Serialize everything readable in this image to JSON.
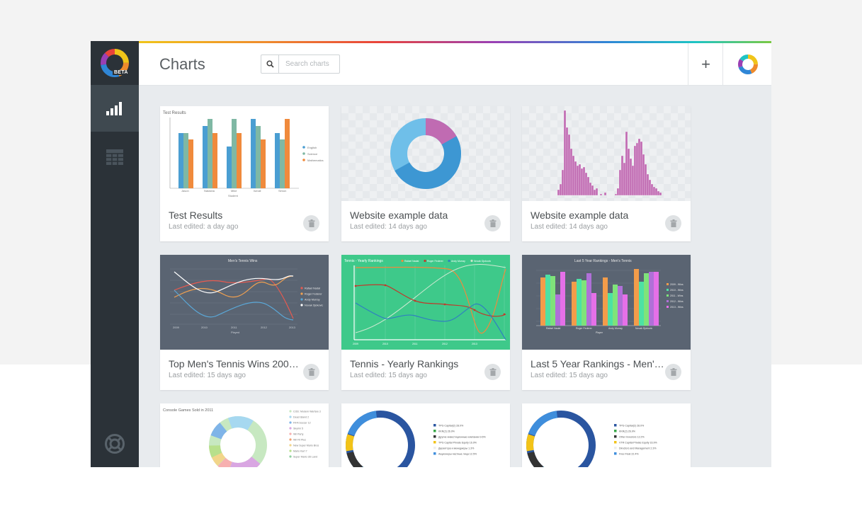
{
  "app": {
    "title": "Charts",
    "badge": "BETA",
    "search_placeholder": "Search charts",
    "add_label": "+"
  },
  "colors": {
    "sidebar": "#2b3238",
    "sidebar_active": "#3f4950",
    "content_bg": "#e8ebee",
    "tennis_green": "#3ec98a",
    "dark_slate": "#5a6472"
  },
  "sidebar": {
    "items": [
      {
        "icon": "bar-chart-icon",
        "active": true
      },
      {
        "icon": "table-icon",
        "active": false
      },
      {
        "icon": "help-ring-icon",
        "active": false
      }
    ]
  },
  "cards": [
    {
      "title": "Test Results",
      "subtitle": "Last edited: a day ago",
      "thumb": {
        "title": "Test Results",
        "xlabel": "Student",
        "ylabel": "Score",
        "categories": [
          "Jason",
          "Natasha",
          "Mike",
          "Ismail",
          "Simon"
        ],
        "legend": [
          "English",
          "Science",
          "Mathematics"
        ]
      }
    },
    {
      "title": "Website example data",
      "subtitle": "Last edited: 14 days ago"
    },
    {
      "title": "Website example data",
      "subtitle": "Last edited: 14 days ago"
    },
    {
      "title": "Top Men's Tennis Wins 2009 - 2013",
      "subtitle": "Last edited: 15 days ago",
      "thumb": {
        "title": "Men's Tennis Wins",
        "xlabel": "Played",
        "legend": [
          "Rafael Nadal",
          "Roger Federer",
          "Andy Murray",
          "Novak Djokovic"
        ],
        "x_ticks": [
          "2009",
          "2010",
          "2011",
          "2012",
          "2013"
        ]
      }
    },
    {
      "title": "Tennis - Yearly Rankings",
      "subtitle": "Last edited: 15 days ago",
      "thumb": {
        "title": "Tennis - Yearly Rankings",
        "legend": [
          "Rafael Nadal",
          "Roger Federer",
          "Andy Murray",
          "Novak Djokovic"
        ],
        "x_ticks": [
          "2009",
          "2010",
          "2011",
          "2012",
          "2013"
        ]
      }
    },
    {
      "title": "Last 5 Year Rankings - Men's Tennis",
      "subtitle": "Last edited: 15 days ago",
      "thumb": {
        "title": "Last 5 Year Rankings - Men's Tennis",
        "xlabel": "Player",
        "categories": [
          "Rafael Nadal",
          "Roger Federer",
          "Andy Murray",
          "Novak Djokovic"
        ],
        "legend": [
          "2009 - Wins",
          "2010 - Wins",
          "2011 - Wins",
          "2012 - Wins",
          "2013 - Wins"
        ]
      }
    },
    {
      "title": "Console Games Sold in 2011",
      "subtitle": "",
      "thumb": {
        "title": "Console Games Sold in 2011",
        "legend": [
          "COD: Modern Warfare 3",
          "Dead Island 2",
          "FIFA Soccer 12",
          "Skyrim 5",
          "Wii Party",
          "Wii Fit Plus",
          "New Super Mario Bros",
          "Mario Kart 7",
          "Super Mario 3D Land"
        ]
      }
    },
    {
      "title": "",
      "subtitle": "",
      "thumb": {
        "legend": [
          "TPG Capital(2) 28.0%",
          "KKR(2) 26.9%",
          "Другие инвестиционные компании 9.6%",
          "TPG Capital Private Equity 16.9%",
          "Директора и менеджеры 1.3%",
          "Акционеры-частные лица 12.5%"
        ]
      }
    },
    {
      "title": "",
      "subtitle": "",
      "thumb": {
        "legend": [
          "TPG Capital(2) 28.0%",
          "KKR(2) 26.9%",
          "Other Investors 12.2%",
          "VTR Capital Private Equity 16.9%",
          "Directors and Management 2.3%",
          "Free Float 22.4%"
        ]
      }
    }
  ]
}
